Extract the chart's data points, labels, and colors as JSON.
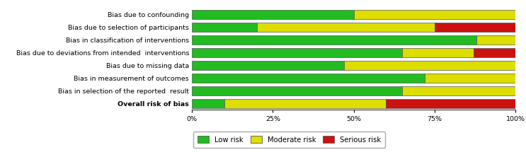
{
  "categories": [
    "Bias due to confounding",
    "Bias due to selection of participants",
    "Bias in classification of interventions",
    "Bias due to deviations from intended  interventions",
    "Bias due to missing data",
    "Bias in measurement of outcomes",
    "Bias in selection of the reported  result",
    "Overall risk of bias"
  ],
  "green": [
    50,
    20,
    88,
    65,
    47,
    72,
    65,
    10
  ],
  "yellow": [
    50,
    55,
    12,
    22,
    53,
    28,
    35,
    50
  ],
  "red": [
    0,
    25,
    0,
    13,
    0,
    0,
    0,
    40
  ],
  "colors": {
    "green": "#22bb22",
    "yellow": "#dddd00",
    "red": "#cc1111"
  },
  "legend_labels": [
    "Low risk",
    "Moderate risk",
    "Serious risk"
  ],
  "xlabel_ticks": [
    "0%",
    "25%",
    "50%",
    "75%",
    "100%"
  ],
  "xlabel_vals": [
    0,
    25,
    50,
    75,
    100
  ],
  "background_color": "#ffffff",
  "bar_height": 0.72,
  "edge_color": "#555555",
  "label_fontsize": 6.8,
  "tick_fontsize": 6.8
}
